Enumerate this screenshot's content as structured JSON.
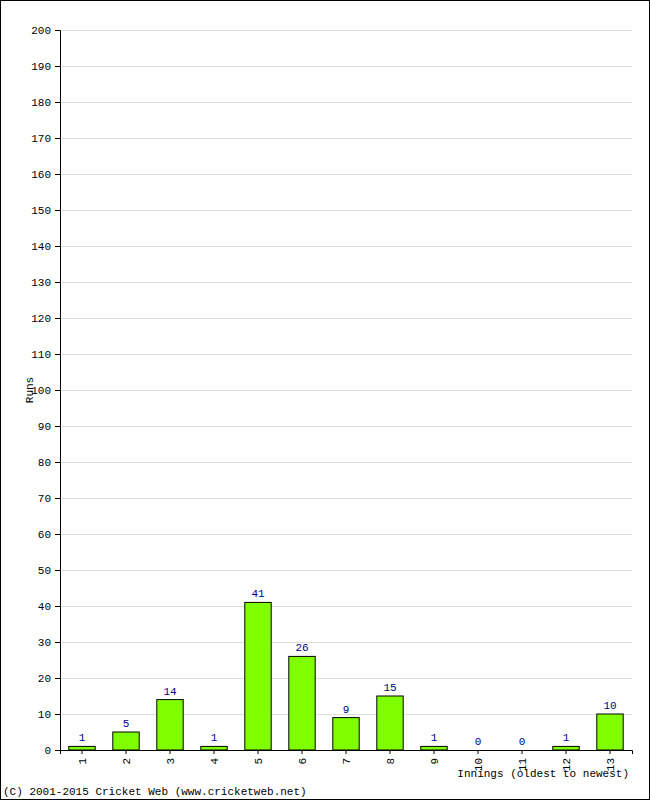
{
  "chart_data": {
    "type": "bar",
    "categories": [
      "1",
      "2",
      "3",
      "4",
      "5",
      "6",
      "7",
      "8",
      "9",
      "10",
      "11",
      "12",
      "13"
    ],
    "values": [
      1,
      5,
      14,
      1,
      41,
      26,
      9,
      15,
      1,
      0,
      0,
      1,
      10
    ],
    "color": "#80ff00",
    "ylim": [
      0,
      200
    ],
    "yticks": [
      0,
      10,
      20,
      30,
      40,
      50,
      60,
      70,
      80,
      90,
      100,
      110,
      120,
      130,
      140,
      150,
      160,
      170,
      180,
      190,
      200
    ],
    "grid": true,
    "data_labels": true,
    "ylabel": "Runs",
    "xlabel": "Innings (oldest to newest)",
    "annotations": [
      "(C) 2001-2015 Cricket Web (www.cricketweb.net)"
    ]
  }
}
